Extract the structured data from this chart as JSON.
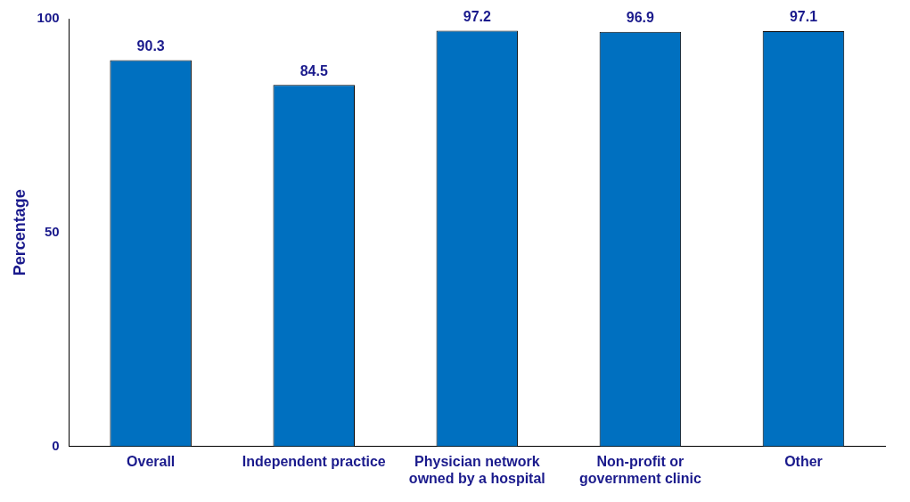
{
  "chart_data": {
    "type": "bar",
    "ylabel": "Percentage",
    "categories": [
      "Overall",
      "Independent practice",
      "Physician network owned by a hospital",
      "Non-profit or government clinic",
      "Other"
    ],
    "values": [
      90.3,
      84.5,
      97.2,
      96.9,
      97.1
    ],
    "color": "#0070c0",
    "ylim": [
      0,
      100
    ],
    "yticks": [
      0,
      50,
      100
    ],
    "grid": false,
    "legend": false,
    "data_labels": true
  }
}
